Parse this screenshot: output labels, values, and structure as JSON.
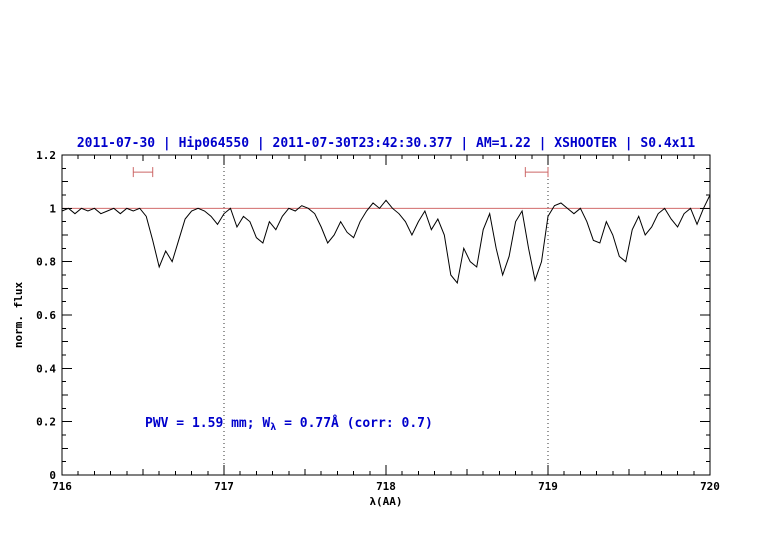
{
  "chart_data": {
    "type": "line",
    "title": "2011-07-30 | Hip064550 | 2011-07-30T23:42:30.377 | AM=1.22 | XSHOOTER | S0.4x11",
    "xlabel": "λ(AA)",
    "ylabel": "norm. flux",
    "xlim": [
      716,
      720
    ],
    "ylim": [
      0,
      1.2
    ],
    "x_ticks": [
      "716",
      "717",
      "718",
      "719",
      "720"
    ],
    "x_tick_values": [
      716,
      717,
      718,
      719,
      720
    ],
    "y_ticks": [
      "0",
      "0.2",
      "0.4",
      "0.6",
      "0.8",
      "1",
      "1.2"
    ],
    "y_tick_values": [
      0,
      0.2,
      0.4,
      0.6,
      0.8,
      1,
      1.2
    ],
    "x_minor_step": 0.1,
    "y_minor_step": 0.05,
    "grid": "off",
    "dotted_vlines": [
      717,
      719
    ],
    "continuum_level": 1.0,
    "legend": "none",
    "annotation": {
      "pre": "PWV = 1.59 mm; W",
      "sub": "λ",
      "post": " = 0.77Å (corr: 0.7)"
    },
    "markers": [
      {
        "x1": 716.44,
        "x2": 716.56,
        "y": 1.136
      },
      {
        "x1": 718.86,
        "x2": 719.0,
        "y": 1.136
      }
    ],
    "series": [
      {
        "name": "telluric-spectrum",
        "x_start": 716.0,
        "x_step": 0.04,
        "y": [
          0.99,
          1.0,
          0.98,
          1.0,
          0.99,
          1.0,
          0.98,
          0.99,
          1.0,
          0.98,
          1.0,
          0.99,
          1.0,
          0.97,
          0.88,
          0.78,
          0.84,
          0.8,
          0.88,
          0.96,
          0.99,
          1.0,
          0.99,
          0.97,
          0.94,
          0.98,
          1.0,
          0.93,
          0.97,
          0.95,
          0.89,
          0.87,
          0.95,
          0.92,
          0.97,
          1.0,
          0.99,
          1.01,
          1.0,
          0.98,
          0.93,
          0.87,
          0.9,
          0.95,
          0.91,
          0.89,
          0.95,
          0.99,
          1.02,
          1.0,
          1.03,
          1.0,
          0.98,
          0.95,
          0.9,
          0.95,
          0.99,
          0.92,
          0.96,
          0.9,
          0.75,
          0.72,
          0.85,
          0.8,
          0.78,
          0.92,
          0.98,
          0.85,
          0.75,
          0.82,
          0.95,
          0.99,
          0.85,
          0.73,
          0.8,
          0.97,
          1.01,
          1.02,
          1.0,
          0.98,
          1.0,
          0.95,
          0.88,
          0.87,
          0.95,
          0.9,
          0.82,
          0.8,
          0.92,
          0.97,
          0.9,
          0.93,
          0.98,
          1.0,
          0.96,
          0.93,
          0.98,
          1.0,
          0.94,
          1.0,
          1.05
        ]
      }
    ],
    "colors": {
      "title_blue": "#0000cc",
      "annotation_blue": "#0000cc",
      "spectrum_black": "#000000",
      "continuum_red": "#cc5555",
      "marker_red": "#cc6666",
      "axis_black": "#000000",
      "background": "#ffffff"
    }
  }
}
